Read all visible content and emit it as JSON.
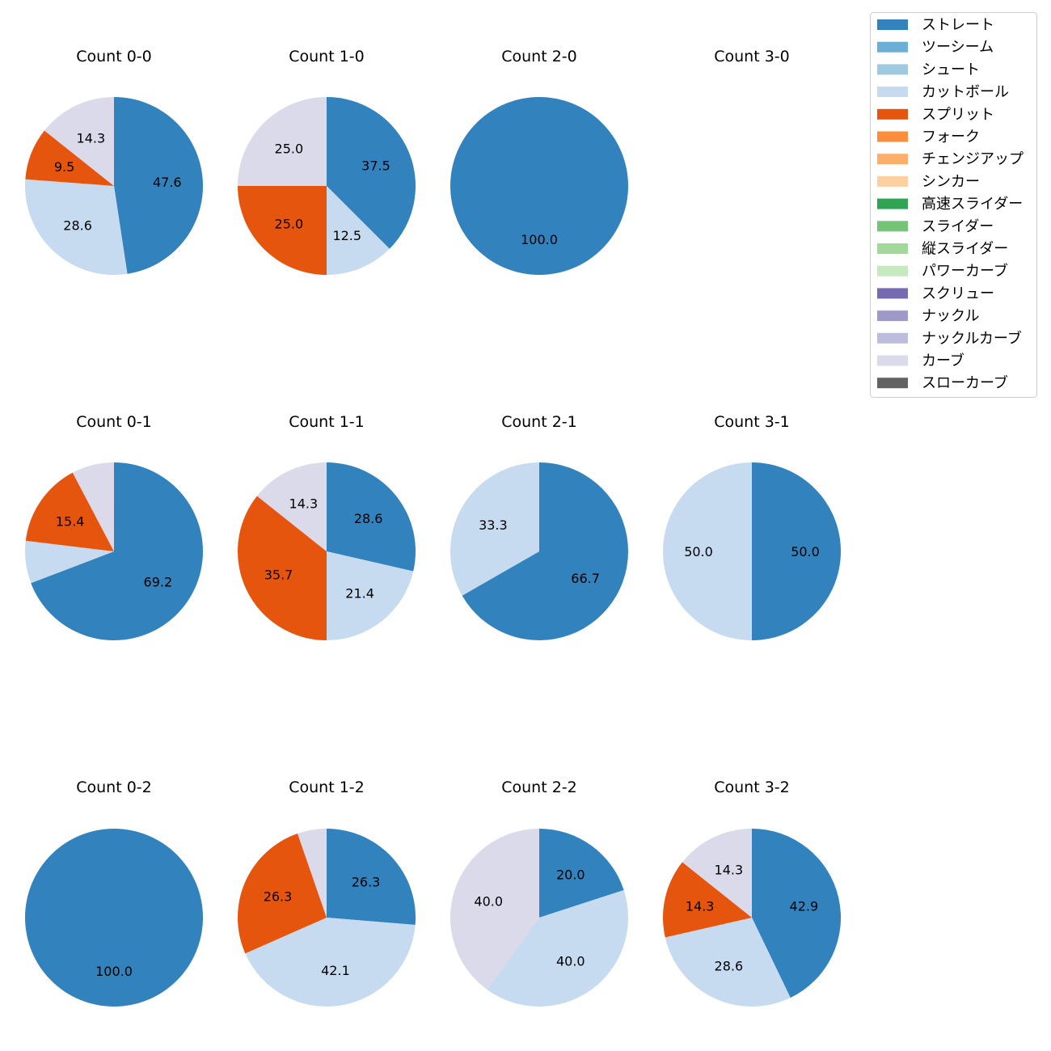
{
  "chart_data": {
    "type": "pie",
    "legend": {
      "placement": "top-right",
      "entries": [
        {
          "name": "ストレート",
          "color": "#3182bd"
        },
        {
          "name": "ツーシーム",
          "color": "#6baed6"
        },
        {
          "name": "シュート",
          "color": "#9ecae1"
        },
        {
          "name": "カットボール",
          "color": "#c6dbef"
        },
        {
          "name": "スプリット",
          "color": "#e6550d"
        },
        {
          "name": "フォーク",
          "color": "#fd8d3c"
        },
        {
          "name": "チェンジアップ",
          "color": "#fdae6b"
        },
        {
          "name": "シンカー",
          "color": "#fdd0a2"
        },
        {
          "name": "高速スライダー",
          "color": "#31a354"
        },
        {
          "name": "スライダー",
          "color": "#74c476"
        },
        {
          "name": "縦スライダー",
          "color": "#a1d99b"
        },
        {
          "name": "パワーカーブ",
          "color": "#c7e9c0"
        },
        {
          "name": "スクリュー",
          "color": "#756bb1"
        },
        {
          "name": "ナックル",
          "color": "#9e9ac8"
        },
        {
          "name": "ナックルカーブ",
          "color": "#bcbddc"
        },
        {
          "name": "カーブ",
          "color": "#dadaeb"
        },
        {
          "name": "スローカーブ",
          "color": "#636363"
        }
      ]
    },
    "pies": [
      {
        "title": "Count 0-0",
        "slices": [
          {
            "pitch": "ストレート",
            "value": 47.6,
            "label": "47.6"
          },
          {
            "pitch": "カットボール",
            "value": 28.6,
            "label": "28.6"
          },
          {
            "pitch": "スプリット",
            "value": 9.5,
            "label": "9.5"
          },
          {
            "pitch": "カーブ",
            "value": 14.3,
            "label": "14.3"
          }
        ]
      },
      {
        "title": "Count 1-0",
        "slices": [
          {
            "pitch": "ストレート",
            "value": 37.5,
            "label": "37.5"
          },
          {
            "pitch": "カットボール",
            "value": 12.5,
            "label": "12.5"
          },
          {
            "pitch": "スプリット",
            "value": 25.0,
            "label": "25.0"
          },
          {
            "pitch": "カーブ",
            "value": 25.0,
            "label": "25.0"
          }
        ]
      },
      {
        "title": "Count 2-0",
        "slices": [
          {
            "pitch": "ストレート",
            "value": 100.0,
            "label": "100.0"
          }
        ]
      },
      {
        "title": "Count 3-0",
        "slices": []
      },
      {
        "title": "Count 0-1",
        "slices": [
          {
            "pitch": "ストレート",
            "value": 69.2,
            "label": "69.2"
          },
          {
            "pitch": "カットボール",
            "value": 7.7,
            "label": ""
          },
          {
            "pitch": "スプリット",
            "value": 15.4,
            "label": "15.4"
          },
          {
            "pitch": "カーブ",
            "value": 7.7,
            "label": ""
          }
        ]
      },
      {
        "title": "Count 1-1",
        "slices": [
          {
            "pitch": "ストレート",
            "value": 28.6,
            "label": "28.6"
          },
          {
            "pitch": "カットボール",
            "value": 21.4,
            "label": "21.4"
          },
          {
            "pitch": "スプリット",
            "value": 35.7,
            "label": "35.7"
          },
          {
            "pitch": "カーブ",
            "value": 14.3,
            "label": "14.3"
          }
        ]
      },
      {
        "title": "Count 2-1",
        "slices": [
          {
            "pitch": "ストレート",
            "value": 66.7,
            "label": "66.7"
          },
          {
            "pitch": "カットボール",
            "value": 33.3,
            "label": "33.3"
          }
        ]
      },
      {
        "title": "Count 3-1",
        "slices": [
          {
            "pitch": "ストレート",
            "value": 50.0,
            "label": "50.0"
          },
          {
            "pitch": "カットボール",
            "value": 50.0,
            "label": "50.0"
          }
        ]
      },
      {
        "title": "Count 0-2",
        "slices": [
          {
            "pitch": "ストレート",
            "value": 100.0,
            "label": "100.0"
          }
        ]
      },
      {
        "title": "Count 1-2",
        "slices": [
          {
            "pitch": "ストレート",
            "value": 26.3,
            "label": "26.3"
          },
          {
            "pitch": "カットボール",
            "value": 42.1,
            "label": "42.1"
          },
          {
            "pitch": "スプリット",
            "value": 26.3,
            "label": "26.3"
          },
          {
            "pitch": "カーブ",
            "value": 5.3,
            "label": ""
          }
        ]
      },
      {
        "title": "Count 2-2",
        "slices": [
          {
            "pitch": "ストレート",
            "value": 20.0,
            "label": "20.0"
          },
          {
            "pitch": "カットボール",
            "value": 40.0,
            "label": "40.0"
          },
          {
            "pitch": "カーブ",
            "value": 40.0,
            "label": "40.0"
          }
        ]
      },
      {
        "title": "Count 3-2",
        "slices": [
          {
            "pitch": "ストレート",
            "value": 42.9,
            "label": "42.9"
          },
          {
            "pitch": "カットボール",
            "value": 28.6,
            "label": "28.6"
          },
          {
            "pitch": "スプリット",
            "value": 14.3,
            "label": "14.3"
          },
          {
            "pitch": "カーブ",
            "value": 14.3,
            "label": "14.3"
          }
        ]
      }
    ]
  }
}
